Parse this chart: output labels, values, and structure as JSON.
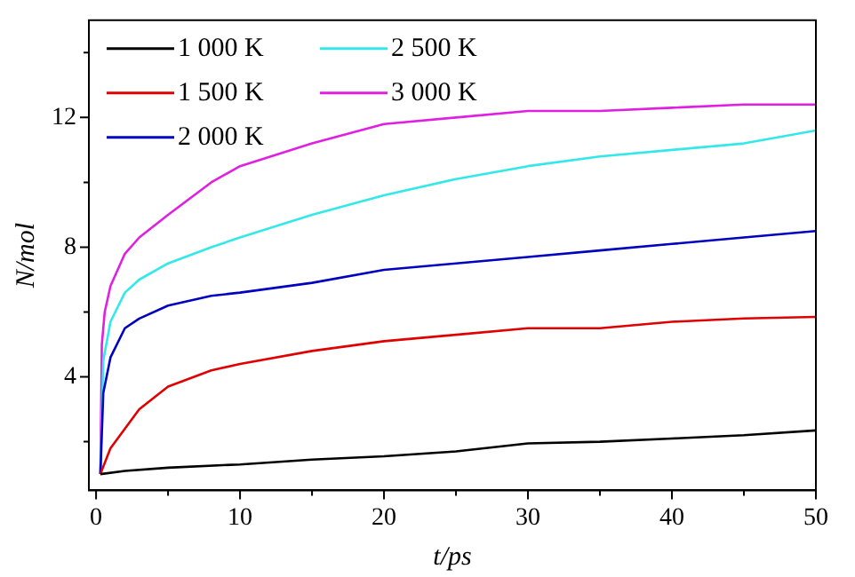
{
  "chart_data": {
    "type": "line",
    "xlabel": "t/ps",
    "ylabel": "N/mol",
    "xlim": [
      -0.5,
      50
    ],
    "ylim": [
      0.5,
      15
    ],
    "xticks": [
      0,
      {
        "value": 5,
        "label": null
      },
      10,
      {
        "value": 15,
        "label": null
      },
      20,
      {
        "value": 25,
        "label": null
      },
      30,
      {
        "value": 35,
        "label": null
      },
      40,
      {
        "value": 45,
        "label": null
      },
      50
    ],
    "yticks": [
      {
        "value": 2,
        "label": null
      },
      4,
      {
        "value": 6,
        "label": null
      },
      8,
      {
        "value": 10,
        "label": null
      },
      12,
      {
        "value": 14,
        "label": null
      }
    ],
    "grid": false,
    "legend": "top left",
    "marker": "none",
    "line_style": "solid",
    "series": [
      {
        "name": "1 000 K",
        "color": "#000000",
        "x": [
          0.3,
          2,
          5,
          10,
          15,
          20,
          25,
          30,
          35,
          40,
          45,
          50
        ],
        "values": [
          1.0,
          1.1,
          1.2,
          1.3,
          1.45,
          1.55,
          1.7,
          1.95,
          2.0,
          2.1,
          2.2,
          2.35
        ]
      },
      {
        "name": "1 500 K",
        "color": "#e00000",
        "x": [
          0.3,
          1,
          2,
          3,
          5,
          8,
          10,
          15,
          20,
          25,
          30,
          35,
          40,
          45,
          50
        ],
        "values": [
          1.0,
          1.8,
          2.4,
          3.0,
          3.7,
          4.2,
          4.4,
          4.8,
          5.1,
          5.3,
          5.5,
          5.5,
          5.7,
          5.8,
          5.85
        ]
      },
      {
        "name": "2 000 K",
        "color": "#0000c0",
        "x": [
          0.3,
          0.5,
          1,
          2,
          3,
          5,
          8,
          10,
          15,
          20,
          25,
          30,
          35,
          40,
          45,
          50
        ],
        "values": [
          1.0,
          3.5,
          4.6,
          5.5,
          5.8,
          6.2,
          6.5,
          6.6,
          6.9,
          7.3,
          7.5,
          7.7,
          7.9,
          8.1,
          8.3,
          8.5
        ]
      },
      {
        "name": "2 500 K",
        "color": "#33e8e8",
        "x": [
          0.3,
          0.5,
          1,
          2,
          3,
          5,
          8,
          10,
          15,
          20,
          25,
          30,
          35,
          40,
          45,
          50
        ],
        "values": [
          1.0,
          4.5,
          5.7,
          6.6,
          7.0,
          7.5,
          8.0,
          8.3,
          9.0,
          9.6,
          10.1,
          10.5,
          10.8,
          11.0,
          11.2,
          11.6
        ]
      },
      {
        "name": "3 000 K",
        "color": "#e020e0",
        "x": [
          0.3,
          0.4,
          0.6,
          1,
          2,
          3,
          5,
          8,
          10,
          15,
          20,
          25,
          30,
          35,
          40,
          45,
          50
        ],
        "values": [
          1.0,
          5.0,
          6.0,
          6.8,
          7.8,
          8.3,
          9.0,
          10.0,
          10.5,
          11.2,
          11.8,
          12.0,
          12.2,
          12.2,
          12.3,
          12.4,
          12.4
        ]
      }
    ]
  }
}
